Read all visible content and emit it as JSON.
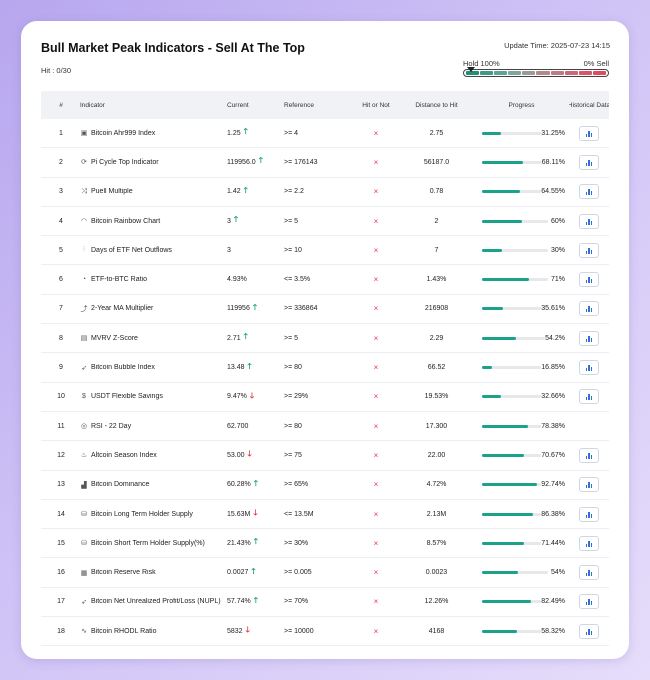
{
  "title": "Bull Market Peak Indicators - Sell At The Top",
  "hit": "Hit : 0/30",
  "update_time": "Update Time: 2025-07-23 14:15",
  "gauge": {
    "left_label": "Hold 100%",
    "right_label": "0% Sell",
    "segment_colors": [
      "#1f8f7a",
      "#3c9a86",
      "#5ba592",
      "#7ea69a",
      "#9a9a9a",
      "#b08a8c",
      "#c07a82",
      "#cd6877",
      "#d8566a",
      "#e24a60"
    ]
  },
  "colors": {
    "up": "#16a06a",
    "down": "#e0384b",
    "progress": "#1aa38a"
  },
  "columns": [
    "#",
    "Indicator",
    "Current",
    "Reference",
    "Hit or Not",
    "Distance to Hit",
    "Progress",
    "Historical Data"
  ],
  "hit_mark": "×",
  "rows": [
    {
      "num": "1",
      "icon": "bitcoin-square-icon",
      "glyph": "▣",
      "name": "Bitcoin Ahr999 Index",
      "current": "1.25",
      "trend": "up",
      "arrow": "🡑",
      "reference": ">= 4",
      "distance": "2.75",
      "progress": 31.25,
      "progress_label": "31.25%",
      "has_history": true
    },
    {
      "num": "2",
      "icon": "cycle-icon",
      "glyph": "⟳",
      "name": "Pi Cycle Top Indicator",
      "current": "119956.0",
      "trend": "up",
      "arrow": "🡑",
      "reference": ">= 176143",
      "distance": "56187.0",
      "progress": 68.11,
      "progress_label": "68.11%",
      "has_history": true
    },
    {
      "num": "3",
      "icon": "puell-icon",
      "glyph": "⤨",
      "name": "Puell Multiple",
      "current": "1.42",
      "trend": "up",
      "arrow": "🡑",
      "reference": ">= 2.2",
      "distance": "0.78",
      "progress": 64.55,
      "progress_label": "64.55%",
      "has_history": true
    },
    {
      "num": "4",
      "icon": "rainbow-icon",
      "glyph": "◠",
      "name": "Bitcoin Rainbow Chart",
      "current": "3",
      "trend": "up",
      "arrow": "🡑",
      "reference": ">= 5",
      "distance": "2",
      "progress": 60,
      "progress_label": "60%",
      "has_history": true
    },
    {
      "num": "5",
      "icon": "bar-chart-icon",
      "glyph": "⫶",
      "name": "Days of ETF Net Outflows",
      "current": "3",
      "trend": "none",
      "arrow": "",
      "reference": ">= 10",
      "distance": "7",
      "progress": 30,
      "progress_label": "30%",
      "has_history": true
    },
    {
      "num": "6",
      "icon": "pie-icon",
      "glyph": "◔",
      "name": "ETF-to-BTC Ratio",
      "current": "4.93%",
      "trend": "none",
      "arrow": "",
      "reference": "<= 3.5%",
      "distance": "1.43%",
      "progress": 71,
      "progress_label": "71%",
      "has_history": true
    },
    {
      "num": "7",
      "icon": "line-chart-icon",
      "glyph": "⤴",
      "name": "2-Year MA Multiplier",
      "current": "119956",
      "trend": "up",
      "arrow": "🡑",
      "reference": ">= 336864",
      "distance": "216908",
      "progress": 35.61,
      "progress_label": "35.61%",
      "has_history": true
    },
    {
      "num": "8",
      "icon": "clipboard-icon",
      "glyph": "▤",
      "name": "MVRV Z-Score",
      "current": "2.71",
      "trend": "up",
      "arrow": "🡑",
      "reference": ">= 5",
      "distance": "2.29",
      "progress": 54.2,
      "progress_label": "54.2%",
      "has_history": true
    },
    {
      "num": "9",
      "icon": "rocket-icon",
      "glyph": "➶",
      "name": "Bitcoin Bubble Index",
      "current": "13.48",
      "trend": "up",
      "arrow": "🡑",
      "reference": ">= 80",
      "distance": "66.52",
      "progress": 16.85,
      "progress_label": "16.85%",
      "has_history": true
    },
    {
      "num": "10",
      "icon": "dollar-icon",
      "glyph": "$",
      "name": "USDT Flexible Savings",
      "current": "9.47%",
      "trend": "down",
      "arrow": "🡓",
      "reference": ">= 29%",
      "distance": "19.53%",
      "progress": 32.66,
      "progress_label": "32.66%",
      "has_history": true
    },
    {
      "num": "11",
      "icon": "rsi-icon",
      "glyph": "◎",
      "name": "RSI - 22 Day",
      "current": "62.700",
      "trend": "none",
      "arrow": "",
      "reference": ">= 80",
      "distance": "17.300",
      "progress": 78.38,
      "progress_label": "78.38%",
      "has_history": false
    },
    {
      "num": "12",
      "icon": "flame-icon",
      "glyph": "♨",
      "name": "Altcoin Season Index",
      "current": "53.00",
      "trend": "down",
      "arrow": "🡓",
      "reference": ">= 75",
      "distance": "22.00",
      "progress": 70.67,
      "progress_label": "70.67%",
      "has_history": true
    },
    {
      "num": "13",
      "icon": "signal-icon",
      "glyph": "▟",
      "name": "Bitcoin Dominance",
      "current": "60.28%",
      "trend": "up",
      "arrow": "🡑",
      "reference": ">= 65%",
      "distance": "4.72%",
      "progress": 92.74,
      "progress_label": "92.74%",
      "has_history": true
    },
    {
      "num": "14",
      "icon": "database-icon",
      "glyph": "⛁",
      "name": "Bitcoin Long Term Holder Supply",
      "current": "15.63M",
      "trend": "down",
      "arrow": "🡓",
      "reference": "<= 13.5M",
      "distance": "2.13M",
      "progress": 86.38,
      "progress_label": "86.38%",
      "has_history": true
    },
    {
      "num": "15",
      "icon": "database-icon",
      "glyph": "⛁",
      "name": "Bitcoin Short Term Holder Supply(%)",
      "current": "21.43%",
      "trend": "up",
      "arrow": "🡑",
      "reference": ">= 30%",
      "distance": "8.57%",
      "progress": 71.44,
      "progress_label": "71.44%",
      "has_history": true
    },
    {
      "num": "16",
      "icon": "reserve-icon",
      "glyph": "▦",
      "name": "Bitcoin Reserve Risk",
      "current": "0.0027",
      "trend": "up",
      "arrow": "🡑",
      "reference": ">= 0.005",
      "distance": "0.0023",
      "progress": 54,
      "progress_label": "54%",
      "has_history": true
    },
    {
      "num": "17",
      "icon": "rocket-icon",
      "glyph": "➶",
      "name": "Bitcoin Net Unrealized Profit/Loss (NUPL)",
      "current": "57.74%",
      "trend": "up",
      "arrow": "🡑",
      "reference": ">= 70%",
      "distance": "12.26%",
      "progress": 82.49,
      "progress_label": "82.49%",
      "has_history": true
    },
    {
      "num": "18",
      "icon": "wave-icon",
      "glyph": "∿",
      "name": "Bitcoin RHODL Ratio",
      "current": "5832",
      "trend": "down",
      "arrow": "🡓",
      "reference": ">= 10000",
      "distance": "4168",
      "progress": 58.32,
      "progress_label": "58.32%",
      "has_history": true
    }
  ]
}
